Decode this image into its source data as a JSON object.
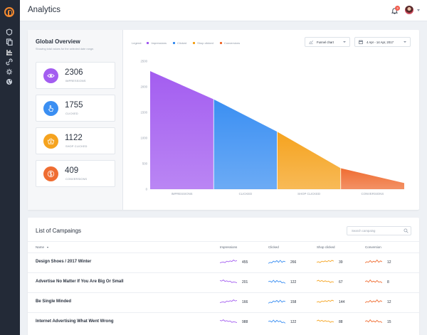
{
  "app": {
    "title": "Analytics"
  },
  "topbar": {
    "notification_count": "3"
  },
  "sidebar": {
    "icons": [
      "dashboard-icon",
      "pages-icon",
      "analytics-icon",
      "links-icon",
      "settings-icon",
      "globe-icon"
    ]
  },
  "overview": {
    "title": "Global Overview",
    "subtitle": "Showing total values for the selected date range.",
    "stats": [
      {
        "value": "2306",
        "label": "IMPRESSIONS",
        "icon": "eye-icon",
        "color": "#a35df0"
      },
      {
        "value": "1755",
        "label": "CLICKED",
        "icon": "hand-pointer-icon",
        "color": "#3b8ff2"
      },
      {
        "value": "1122",
        "label": "SHOP CLICKED",
        "icon": "shopping-basket-icon",
        "color": "#f5a31f"
      },
      {
        "value": "409",
        "label": "CONVERSIONS",
        "icon": "dollar-icon",
        "color": "#ef6d32"
      }
    ],
    "legend_title": "Legend:",
    "legend": [
      {
        "label": "Impressions",
        "color": "#a35df0"
      },
      {
        "label": "Clicked",
        "color": "#3b8ff2"
      },
      {
        "label": "Shop clicked",
        "color": "#f5a31f"
      },
      {
        "label": "Conversions",
        "color": "#ef6d32"
      }
    ],
    "chart_type_dropdown": "Funnel chart",
    "date_range_dropdown": "4 Apr - 14 Apr, 2017"
  },
  "chart_data": {
    "type": "area",
    "categories": [
      "IMPRESSIONS",
      "CLICKED",
      "SHOP CLICKED",
      "CONVERSIONS"
    ],
    "values": [
      2306,
      1755,
      1122,
      409
    ],
    "end_value": 120,
    "colors": [
      "#a35df0",
      "#3b8ff2",
      "#f5a31f",
      "#ef6d32"
    ],
    "yticks": [
      0,
      500,
      1000,
      1500,
      2000,
      2500
    ],
    "ylim": [
      0,
      2500
    ],
    "grid": false,
    "legend_position": "top-left"
  },
  "campaigns": {
    "title": "List of Campaings",
    "search_placeholder": "Search campaing",
    "columns": [
      "Name",
      "Impressions",
      "Clicked",
      "Shop clicked",
      "Conversion"
    ],
    "rows": [
      {
        "name": "Design Shoes / 2017 Winter",
        "impressions": "455",
        "clicked": "266",
        "shop_clicked": "39",
        "conversion": "12"
      },
      {
        "name": "Advertise No Matter If You Are Big Or Small",
        "impressions": "201",
        "clicked": "122",
        "shop_clicked": "67",
        "conversion": "8"
      },
      {
        "name": "Be Single Minded",
        "impressions": "166",
        "clicked": "158",
        "shop_clicked": "144",
        "conversion": "12"
      },
      {
        "name": "Internet Advertising What Went Wrong",
        "impressions": "988",
        "clicked": "122",
        "shop_clicked": "88",
        "conversion": "15"
      }
    ]
  }
}
